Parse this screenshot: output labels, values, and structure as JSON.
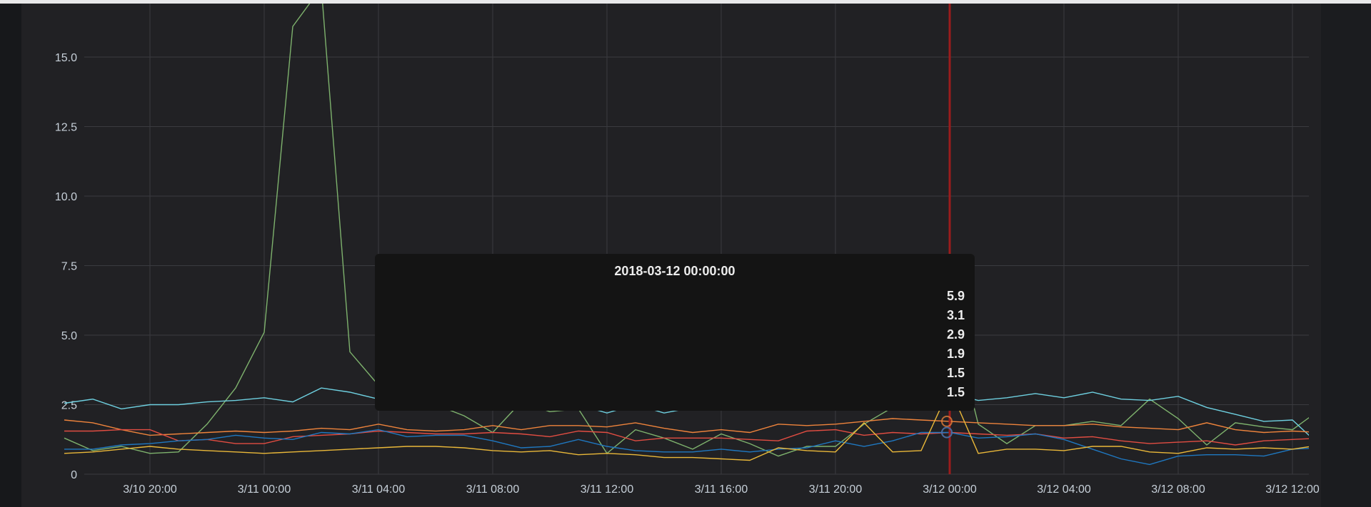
{
  "chart_data": {
    "type": "line",
    "xlabel": "",
    "ylabel": "",
    "ylim": [
      0,
      17
    ],
    "yticks": [
      0,
      2.5,
      5.0,
      7.5,
      10.0,
      12.5,
      15.0
    ],
    "ytick_labels": [
      "0",
      "2.5",
      "5.0",
      "7.5",
      "10.0",
      "12.5",
      "15.0"
    ],
    "xlim": [
      "2018-03-10 17:00",
      "2018-03-12 13:00"
    ],
    "xticks": [
      "2018-03-10 20:00",
      "2018-03-11 00:00",
      "2018-03-11 04:00",
      "2018-03-11 08:00",
      "2018-03-11 12:00",
      "2018-03-11 16:00",
      "2018-03-11 20:00",
      "2018-03-12 00:00",
      "2018-03-12 04:00",
      "2018-03-12 08:00",
      "2018-03-12 12:00"
    ],
    "xtick_labels": [
      "3/10 20:00",
      "3/11 00:00",
      "3/11 04:00",
      "3/11 08:00",
      "3/11 12:00",
      "3/11 16:00",
      "3/11 20:00",
      "3/12 00:00",
      "3/12 04:00",
      "3/12 08:00",
      "3/12 12:00"
    ],
    "x": [
      "2018-03-10 17:00",
      "2018-03-10 18:00",
      "2018-03-10 19:00",
      "2018-03-10 20:00",
      "2018-03-10 21:00",
      "2018-03-10 22:00",
      "2018-03-10 23:00",
      "2018-03-11 00:00",
      "2018-03-11 01:00",
      "2018-03-11 02:00",
      "2018-03-11 03:00",
      "2018-03-11 04:00",
      "2018-03-11 05:00",
      "2018-03-11 06:00",
      "2018-03-11 07:00",
      "2018-03-11 08:00",
      "2018-03-11 09:00",
      "2018-03-11 10:00",
      "2018-03-11 11:00",
      "2018-03-11 12:00",
      "2018-03-11 13:00",
      "2018-03-11 14:00",
      "2018-03-11 15:00",
      "2018-03-11 16:00",
      "2018-03-11 17:00",
      "2018-03-11 18:00",
      "2018-03-11 19:00",
      "2018-03-11 20:00",
      "2018-03-11 21:00",
      "2018-03-11 22:00",
      "2018-03-11 23:00",
      "2018-03-12 00:00",
      "2018-03-12 01:00",
      "2018-03-12 02:00",
      "2018-03-12 03:00",
      "2018-03-12 04:00",
      "2018-03-12 05:00",
      "2018-03-12 06:00",
      "2018-03-12 07:00",
      "2018-03-12 08:00",
      "2018-03-12 09:00",
      "2018-03-12 10:00",
      "2018-03-12 11:00",
      "2018-03-12 12:00",
      "2018-03-12 13:00"
    ],
    "series": [
      {
        "color": "#7eb26d",
        "values": [
          1.3,
          0.85,
          1.0,
          0.75,
          0.8,
          1.8,
          3.1,
          5.1,
          16.1,
          17.5,
          4.4,
          3.2,
          2.9,
          2.5,
          2.1,
          1.5,
          2.6,
          2.25,
          2.35,
          0.75,
          1.6,
          1.3,
          0.9,
          1.45,
          1.1,
          0.65,
          1.0,
          1.0,
          1.8,
          2.4,
          2.6,
          5.9,
          1.8,
          1.1,
          1.75,
          1.75,
          1.9,
          1.75,
          2.7,
          2.0,
          1.05,
          1.85,
          1.7,
          1.6,
          2.35
        ]
      },
      {
        "color": "#6ed0e0",
        "values": [
          2.55,
          2.7,
          2.35,
          2.5,
          2.5,
          2.6,
          2.65,
          2.75,
          2.6,
          3.1,
          2.95,
          2.7,
          2.6,
          2.45,
          2.4,
          2.3,
          2.6,
          2.5,
          2.5,
          2.2,
          2.5,
          2.2,
          2.4,
          2.45,
          2.35,
          2.5,
          2.6,
          2.45,
          2.4,
          2.55,
          2.7,
          2.9,
          2.65,
          2.75,
          2.9,
          2.75,
          2.95,
          2.7,
          2.65,
          2.8,
          2.4,
          2.15,
          1.9,
          1.95,
          1.0
        ]
      },
      {
        "color": "#ef843c",
        "values": [
          1.95,
          1.85,
          1.6,
          1.4,
          1.45,
          1.5,
          1.55,
          1.5,
          1.55,
          1.65,
          1.6,
          1.8,
          1.6,
          1.55,
          1.6,
          1.75,
          1.6,
          1.75,
          1.75,
          1.7,
          1.85,
          1.65,
          1.5,
          1.6,
          1.5,
          1.8,
          1.75,
          1.8,
          1.9,
          2.0,
          1.95,
          1.9,
          1.85,
          1.8,
          1.75,
          1.75,
          1.8,
          1.7,
          1.65,
          1.6,
          1.85,
          1.6,
          1.5,
          1.55,
          1.5
        ]
      },
      {
        "color": "#e24d42",
        "values": [
          1.55,
          1.55,
          1.6,
          1.6,
          1.2,
          1.25,
          1.1,
          1.1,
          1.35,
          1.4,
          1.45,
          1.55,
          1.5,
          1.45,
          1.45,
          1.5,
          1.45,
          1.35,
          1.55,
          1.5,
          1.2,
          1.3,
          1.3,
          1.3,
          1.25,
          1.2,
          1.55,
          1.6,
          1.4,
          1.5,
          1.45,
          1.5,
          1.45,
          1.4,
          1.45,
          1.3,
          1.35,
          1.2,
          1.1,
          1.15,
          1.2,
          1.05,
          1.2,
          1.25,
          1.3
        ]
      },
      {
        "color": "#1f78c1",
        "values": [
          0.9,
          0.9,
          1.05,
          1.1,
          1.2,
          1.25,
          1.4,
          1.3,
          1.25,
          1.5,
          1.45,
          1.6,
          1.35,
          1.4,
          1.4,
          1.2,
          0.95,
          1.0,
          1.25,
          1.0,
          0.85,
          0.8,
          0.8,
          0.9,
          0.8,
          0.9,
          0.95,
          1.2,
          1.0,
          1.2,
          1.5,
          1.5,
          1.3,
          1.35,
          1.45,
          1.25,
          0.9,
          0.55,
          0.35,
          0.65,
          0.7,
          0.7,
          0.65,
          0.9,
          0.95
        ]
      },
      {
        "color": "#eab839",
        "values": [
          0.75,
          0.8,
          0.9,
          1.0,
          0.9,
          0.85,
          0.8,
          0.75,
          0.8,
          0.85,
          0.9,
          0.95,
          1.0,
          1.0,
          0.95,
          0.85,
          0.8,
          0.85,
          0.7,
          0.75,
          0.7,
          0.6,
          0.6,
          0.55,
          0.5,
          0.95,
          0.85,
          0.8,
          1.85,
          0.8,
          0.85,
          3.1,
          0.75,
          0.9,
          0.9,
          0.85,
          1.0,
          1.0,
          0.8,
          0.75,
          0.95,
          0.9,
          0.95,
          0.9,
          1.05
        ]
      }
    ],
    "crosshair_x": "2018-03-12 00:00",
    "crosshair_color": "#9b1c1c",
    "grid": true,
    "grid_color": "#3a3b3f",
    "tooltip": {
      "time": "2018-03-12 00:00:00",
      "values": [
        "5.9",
        "3.1",
        "2.9",
        "1.9",
        "1.5",
        "1.5"
      ]
    }
  }
}
